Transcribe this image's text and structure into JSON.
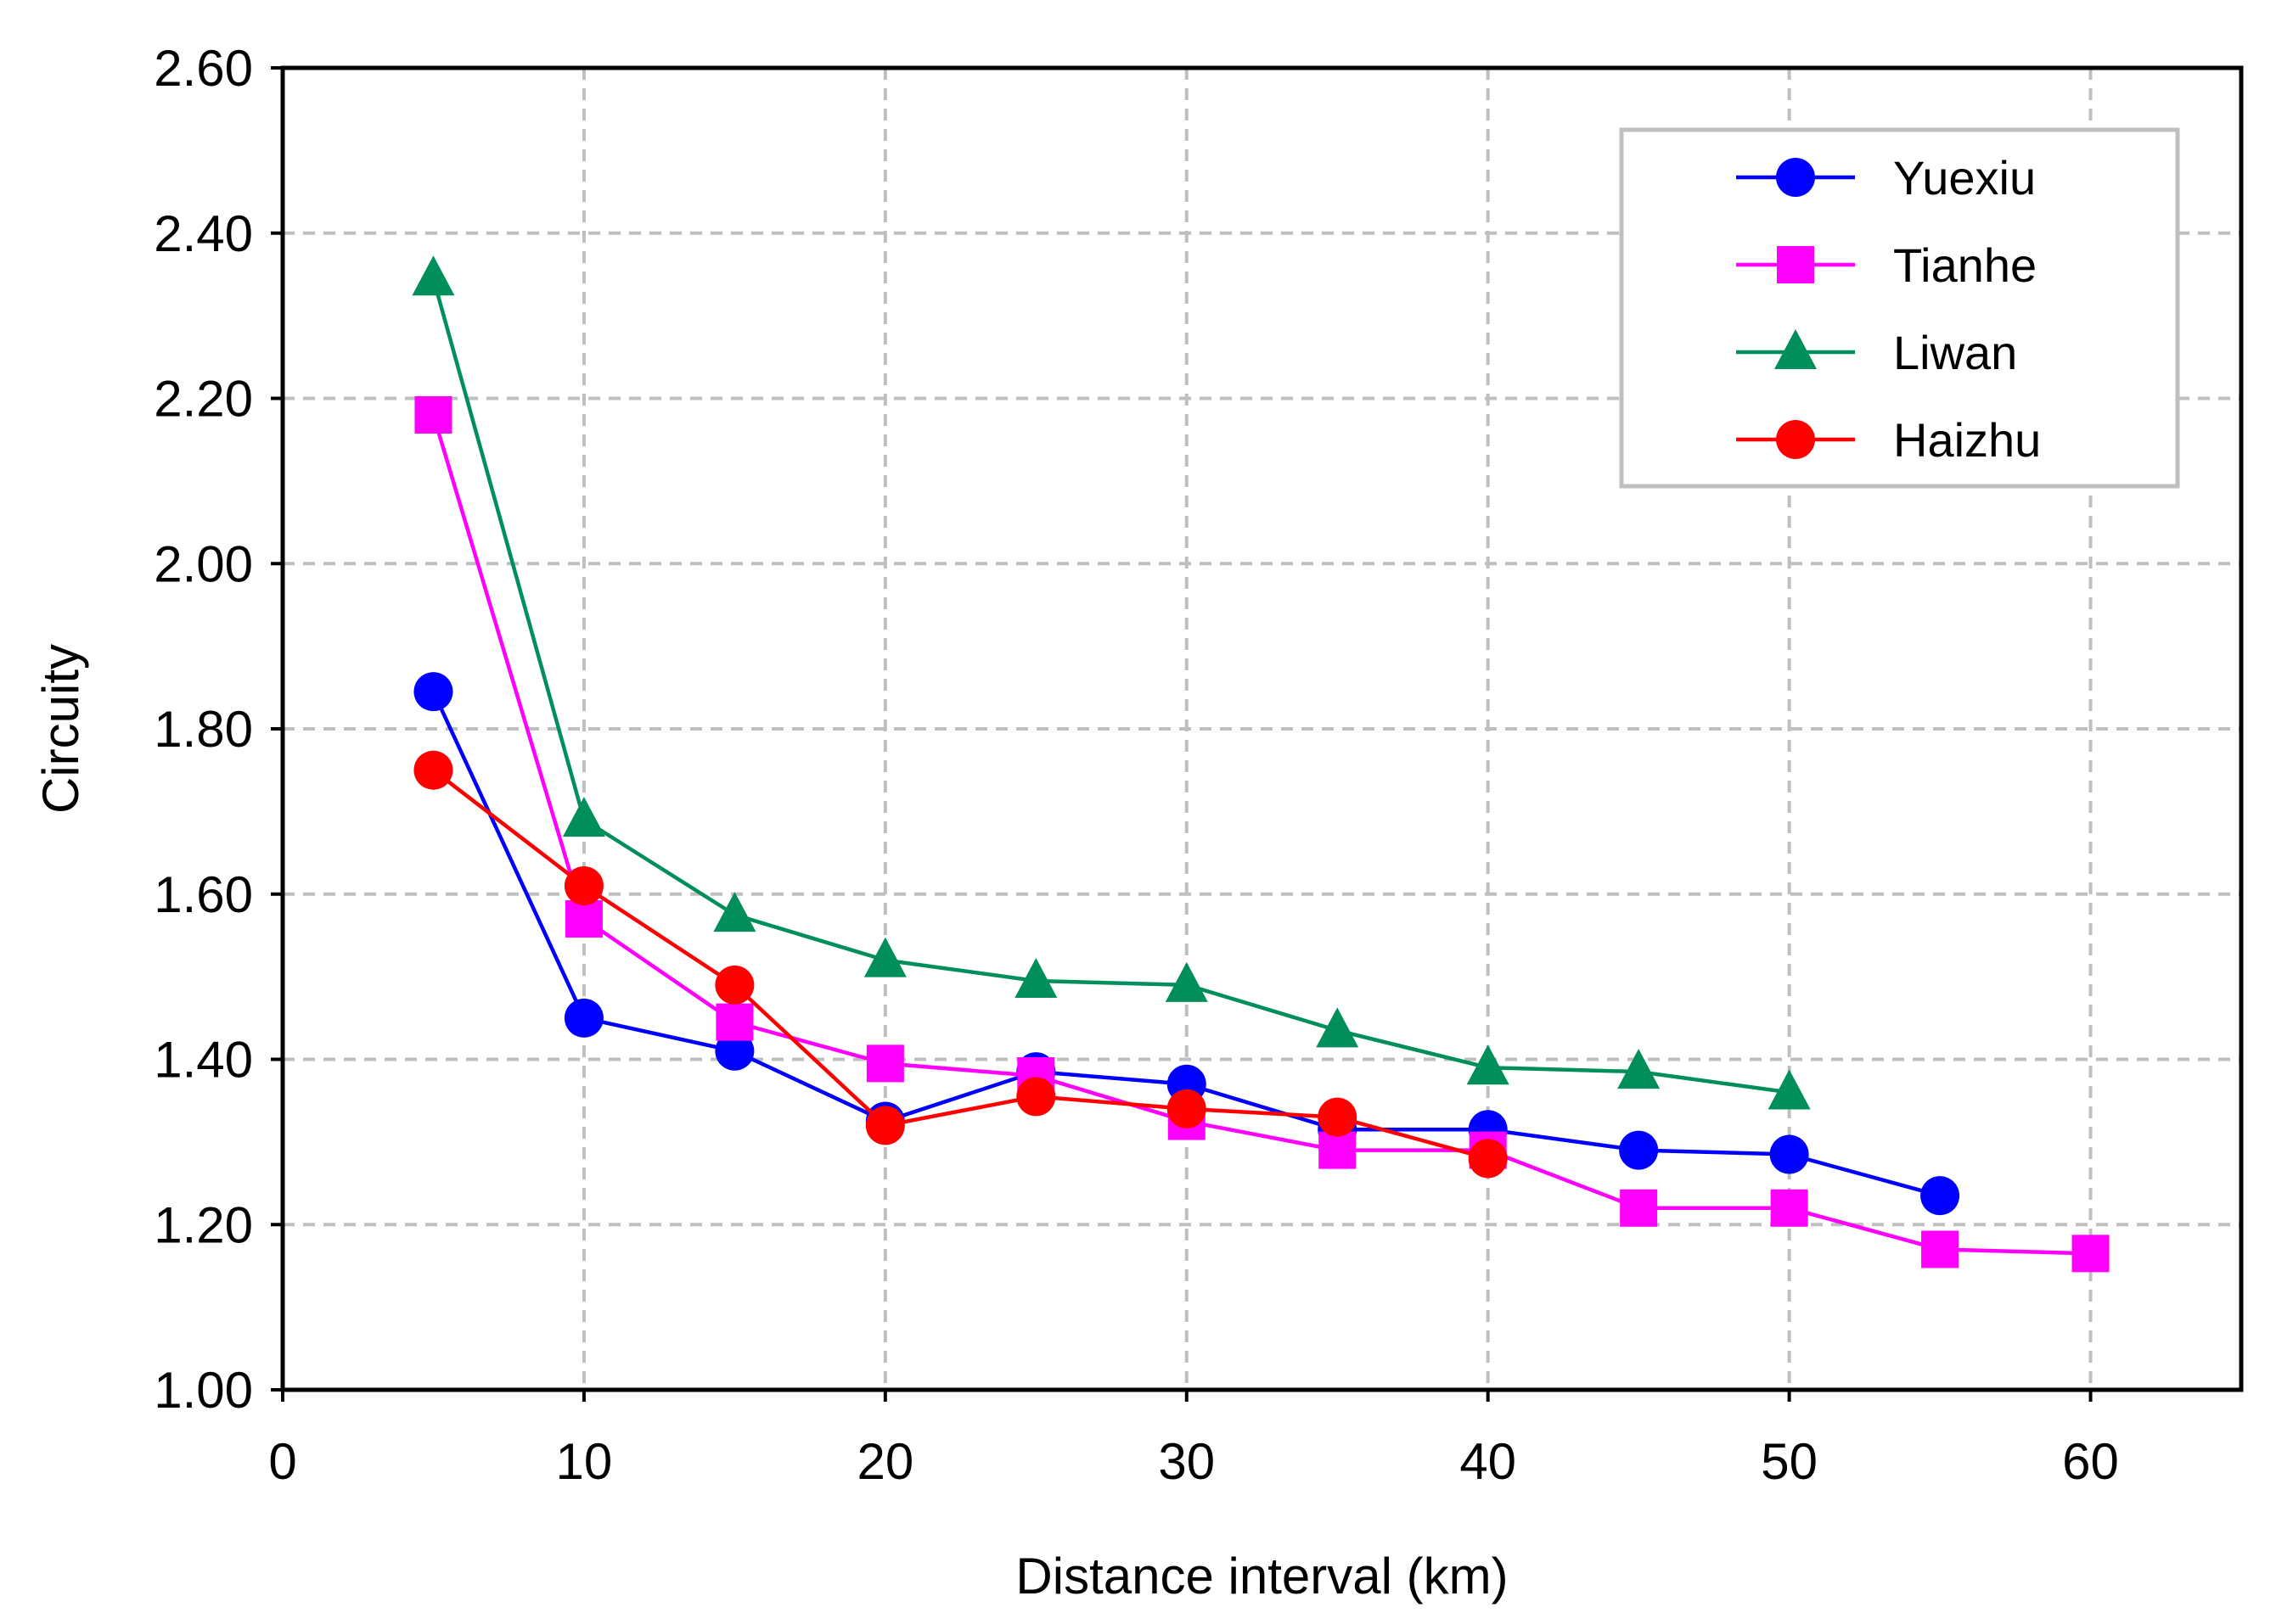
{
  "chart_data": {
    "type": "line",
    "title": "",
    "xlabel": "Distance interval (km)",
    "ylabel": "Circuity",
    "xlim": [
      0,
      65
    ],
    "ylim": [
      1.0,
      2.6
    ],
    "x_ticks": [
      0,
      10,
      20,
      30,
      40,
      50,
      60
    ],
    "y_ticks": [
      1.0,
      1.2,
      1.4,
      1.6,
      1.8,
      2.0,
      2.2,
      2.4,
      2.6
    ],
    "x_tick_labels": [
      "0",
      "10",
      "20",
      "30",
      "40",
      "50",
      "60"
    ],
    "y_tick_labels": [
      "1.00",
      "1.20",
      "1.40",
      "1.60",
      "1.80",
      "2.00",
      "2.20",
      "2.40",
      "2.60"
    ],
    "grid": true,
    "grid_style": "dashed",
    "legend_position": "top-right",
    "series": [
      {
        "name": "Yuexiu",
        "color": "#0000ff",
        "marker": "circle",
        "x": [
          5,
          10,
          15,
          20,
          25,
          30,
          35,
          40,
          45,
          50,
          55
        ],
        "y": [
          1.845,
          1.45,
          1.41,
          1.325,
          1.385,
          1.37,
          1.315,
          1.315,
          1.29,
          1.285,
          1.235
        ]
      },
      {
        "name": "Tianhe",
        "color": "#ff00ff",
        "marker": "square",
        "x": [
          5,
          10,
          15,
          20,
          25,
          30,
          35,
          40,
          45,
          50,
          55,
          60
        ],
        "y": [
          2.18,
          1.57,
          1.445,
          1.395,
          1.38,
          1.325,
          1.29,
          1.29,
          1.22,
          1.22,
          1.17,
          1.165
        ]
      },
      {
        "name": "Liwan",
        "color": "#008f5a",
        "marker": "triangle",
        "x": [
          5,
          10,
          15,
          20,
          25,
          30,
          35,
          40,
          45,
          50
        ],
        "y": [
          2.345,
          1.69,
          1.575,
          1.52,
          1.495,
          1.49,
          1.435,
          1.39,
          1.385,
          1.36
        ]
      },
      {
        "name": "Haizhu",
        "color": "#ff0000",
        "marker": "circle",
        "x": [
          5,
          10,
          15,
          20,
          25,
          30,
          35,
          40
        ],
        "y": [
          1.75,
          1.61,
          1.49,
          1.32,
          1.355,
          1.34,
          1.33,
          1.28
        ]
      }
    ]
  }
}
